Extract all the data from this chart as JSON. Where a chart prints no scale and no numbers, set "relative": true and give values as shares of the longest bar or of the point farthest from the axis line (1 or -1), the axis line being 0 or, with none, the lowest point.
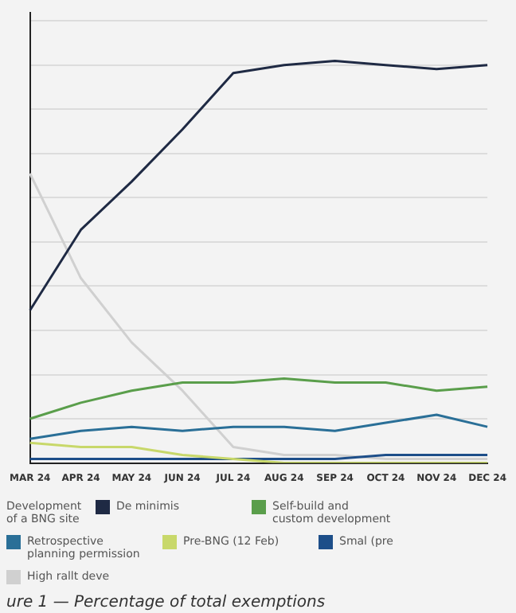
{
  "chart_data": {
    "type": "line",
    "relative": true,
    "title": "ure 1 — Percentage of total exemptions",
    "categories": [
      "MAR 24",
      "APR 24",
      "MAY 24",
      "JUN 24",
      "JUL 24",
      "AUG 24",
      "SEP 24",
      "OCT 24",
      "NOV 24",
      "DEC 24"
    ],
    "series": [
      {
        "name": "De minimis",
        "color": "#1f2a44",
        "values": [
          0.38,
          0.58,
          0.7,
          0.83,
          0.97,
          0.99,
          1,
          0.99,
          0.98,
          0.99
        ]
      },
      {
        "name": "Self-build and custom development",
        "color": "#5a9e4b",
        "values": [
          0.11,
          0.15,
          0.18,
          0.2,
          0.2,
          0.21,
          0.2,
          0.2,
          0.18,
          0.19
        ]
      },
      {
        "name": "Retrospective planning permission",
        "color": "#2a6f97",
        "values": [
          0.06,
          0.08,
          0.09,
          0.08,
          0.09,
          0.09,
          0.08,
          0.1,
          0.12,
          0.09
        ]
      },
      {
        "name": "Pre-BNG (12 Feb)",
        "color": "#c8d86a",
        "values": [
          0.05,
          0.04,
          0.04,
          0.02,
          0.01,
          0,
          0,
          0,
          0,
          0
        ]
      },
      {
        "name": "Smal (pre",
        "color": "#1d4e89",
        "values": [
          0.01,
          0.01,
          0.01,
          0.01,
          0.01,
          0.01,
          0.01,
          0.02,
          0.02,
          0.02
        ]
      },
      {
        "name": "High rallt deve",
        "color": "#d0d0d0",
        "values": [
          0.72,
          0.46,
          0.3,
          0.18,
          0.04,
          0.02,
          0.02,
          0.01,
          0.01,
          0.01
        ]
      }
    ],
    "grid": "y",
    "legend": "bottom",
    "marker": "none",
    "line_style": "solid",
    "annotations": [
      "Development of a BNG site"
    ]
  }
}
